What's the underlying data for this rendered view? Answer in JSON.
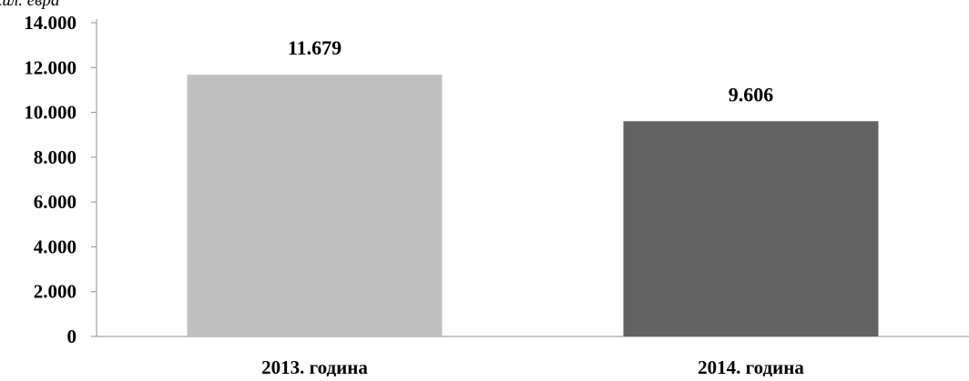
{
  "chart_data": {
    "type": "bar",
    "unit_label": "хил. евра",
    "categories": [
      "2013. година",
      "2014. година"
    ],
    "values": [
      11679,
      9606
    ],
    "data_labels": [
      "11.679",
      "9.606"
    ],
    "bar_colors": [
      "#bfbfbf",
      "#626262"
    ],
    "ylim": [
      0,
      14000
    ],
    "y_ticks": [
      0,
      2000,
      4000,
      6000,
      8000,
      10000,
      12000,
      14000
    ],
    "y_tick_labels": [
      "0",
      "2.000",
      "4.000",
      "6.000",
      "8.000",
      "10.000",
      "12.000",
      "14.000"
    ],
    "grid": false,
    "legend": "none",
    "axis_color": "#8c8c8c"
  }
}
